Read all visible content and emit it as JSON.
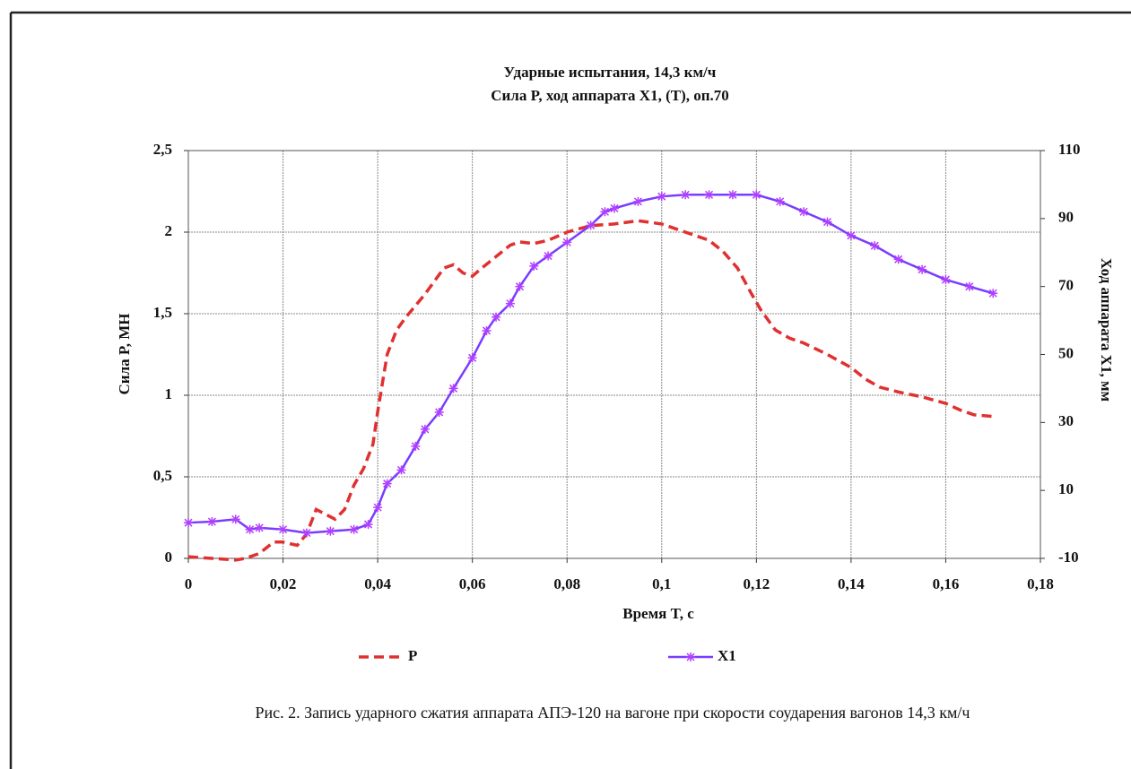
{
  "chart_data": {
    "type": "line",
    "title": "Ударные испытания, 14,3 км/ч",
    "subtitle": "Сила P, ход аппарата  X1, (T), оп.70",
    "xlabel": "Время T, с",
    "ylabel": "Сила P, МН",
    "y2label": "Ход аппарата X1,  мм",
    "xlim": [
      0,
      0.18
    ],
    "xticks": [
      0,
      {
        "value": 0.02,
        "label": "0,02"
      },
      {
        "value": 0.04,
        "label": "0,04"
      },
      {
        "value": 0.06,
        "label": "0,06"
      },
      {
        "value": 0.08,
        "label": "0,08"
      },
      {
        "value": 0.1,
        "label": "0,1"
      },
      {
        "value": 0.12,
        "label": "0,12"
      },
      {
        "value": 0.14,
        "label": "0,14"
      },
      {
        "value": 0.16,
        "label": "0,16"
      },
      {
        "value": 0.18,
        "label": "0,18"
      }
    ],
    "ylim": [
      0,
      2.5
    ],
    "yticks": [
      0,
      {
        "value": 0.5,
        "label": "0,5"
      },
      1,
      {
        "value": 1.5,
        "label": "1,5"
      },
      2,
      {
        "value": 2.5,
        "label": "2,5"
      }
    ],
    "y2lim": [
      -10,
      110
    ],
    "y2ticks": [
      -10,
      10,
      30,
      50,
      70,
      90,
      110
    ],
    "grid": true,
    "legend": "bottom",
    "series": [
      {
        "name": "P",
        "color": "#e03030",
        "style": "dashed",
        "x": [
          0,
          0.005,
          0.01,
          0.012,
          0.015,
          0.018,
          0.02,
          0.023,
          0.025,
          0.027,
          0.029,
          0.031,
          0.033,
          0.035,
          0.037,
          0.039,
          0.04,
          0.042,
          0.044,
          0.046,
          0.048,
          0.05,
          0.052,
          0.054,
          0.056,
          0.058,
          0.06,
          0.062,
          0.065,
          0.068,
          0.07,
          0.073,
          0.076,
          0.08,
          0.085,
          0.09,
          0.095,
          0.1,
          0.105,
          0.11,
          0.113,
          0.116,
          0.119,
          0.121,
          0.124,
          0.127,
          0.13,
          0.135,
          0.14,
          0.143,
          0.146,
          0.15,
          0.155,
          0.16,
          0.163,
          0.166,
          0.17
        ],
        "values": [
          0.01,
          0,
          -0.01,
          0,
          0.03,
          0.1,
          0.1,
          0.08,
          0.15,
          0.3,
          0.27,
          0.24,
          0.3,
          0.45,
          0.55,
          0.7,
          0.9,
          1.25,
          1.4,
          1.48,
          1.55,
          1.62,
          1.7,
          1.78,
          1.8,
          1.75,
          1.73,
          1.78,
          1.85,
          1.92,
          1.94,
          1.93,
          1.95,
          2.0,
          2.04,
          2.05,
          2.07,
          2.05,
          2.0,
          1.95,
          1.88,
          1.78,
          1.62,
          1.52,
          1.4,
          1.35,
          1.32,
          1.25,
          1.17,
          1.1,
          1.05,
          1.02,
          0.99,
          0.95,
          0.91,
          0.88,
          0.87
        ]
      },
      {
        "name": "X1",
        "color": "#7a3cff",
        "marker": "asterisk",
        "axis": "y2",
        "x": [
          0,
          0.005,
          0.01,
          0.013,
          0.015,
          0.02,
          0.025,
          0.03,
          0.035,
          0.038,
          0.04,
          0.042,
          0.045,
          0.048,
          0.05,
          0.053,
          0.056,
          0.06,
          0.063,
          0.065,
          0.068,
          0.07,
          0.073,
          0.076,
          0.08,
          0.085,
          0.088,
          0.09,
          0.095,
          0.1,
          0.105,
          0.11,
          0.115,
          0.12,
          0.125,
          0.13,
          0.135,
          0.14,
          0.145,
          0.15,
          0.155,
          0.16,
          0.165,
          0.17
        ],
        "values": [
          0.5,
          0.8,
          1.5,
          -1.5,
          -1,
          -1.5,
          -2.5,
          -2,
          -1.5,
          0,
          5,
          12,
          16,
          23,
          28,
          33,
          40,
          49,
          57,
          61,
          65,
          70,
          76,
          79,
          83,
          88,
          92,
          93,
          95,
          96.5,
          97,
          97,
          97,
          97,
          95,
          92,
          89,
          85,
          82,
          78,
          75,
          72,
          70,
          68
        ]
      }
    ]
  },
  "caption": "Рис. 2. Запись ударного сжатия аппарата АПЭ-120 на вагоне при скорости соударения вагонов 14,3 км/ч"
}
